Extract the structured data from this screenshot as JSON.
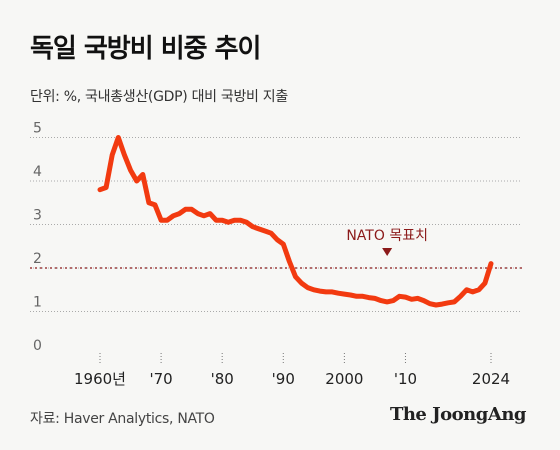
{
  "title": "독일 국방비 비중 추이",
  "subtitle": "단위: %, 국내총생산(GDP) 대비 국방비 지출",
  "source": "자료: Haver Analytics, NATO",
  "brand": "The JoongAng",
  "colors": {
    "line": "#f23a10",
    "target_line": "#8b1a1a",
    "grid": "#aaaaaa",
    "background": "#f7f7f5"
  },
  "chart_data": {
    "type": "line",
    "title": "독일 국방비 비중 추이",
    "ylabel": "단위: %, 국내총생산(GDP) 대비 국방비 지출",
    "xlim": [
      1956,
      2028
    ],
    "ylim": [
      0,
      5
    ],
    "yticks": [
      0,
      1,
      2,
      3,
      4,
      5
    ],
    "xticks": [
      {
        "value": 1960,
        "label": "1960년"
      },
      {
        "value": 1970,
        "label": "'70"
      },
      {
        "value": 1980,
        "label": "'80"
      },
      {
        "value": 1990,
        "label": "'90"
      },
      {
        "value": 2000,
        "label": "2000"
      },
      {
        "value": 2010,
        "label": "'10"
      },
      {
        "value": 2024,
        "label": "2024"
      }
    ],
    "grid": "horizontal dotted",
    "target": {
      "value": 2.0,
      "label": "NATO 목표치",
      "label_year": 2007
    },
    "series": [
      {
        "points": [
          [
            1960,
            3.8
          ],
          [
            1961,
            3.85
          ],
          [
            1962,
            4.6
          ],
          [
            1963,
            5.0
          ],
          [
            1964,
            4.6
          ],
          [
            1965,
            4.25
          ],
          [
            1966,
            4.0
          ],
          [
            1967,
            4.15
          ],
          [
            1968,
            3.5
          ],
          [
            1969,
            3.45
          ],
          [
            1970,
            3.1
          ],
          [
            1971,
            3.1
          ],
          [
            1972,
            3.2
          ],
          [
            1973,
            3.25
          ],
          [
            1974,
            3.35
          ],
          [
            1975,
            3.35
          ],
          [
            1976,
            3.25
          ],
          [
            1977,
            3.2
          ],
          [
            1978,
            3.25
          ],
          [
            1979,
            3.1
          ],
          [
            1980,
            3.1
          ],
          [
            1981,
            3.05
          ],
          [
            1982,
            3.1
          ],
          [
            1983,
            3.1
          ],
          [
            1984,
            3.05
          ],
          [
            1985,
            2.95
          ],
          [
            1986,
            2.9
          ],
          [
            1987,
            2.85
          ],
          [
            1988,
            2.8
          ],
          [
            1989,
            2.65
          ],
          [
            1990,
            2.55
          ],
          [
            1991,
            2.15
          ],
          [
            1992,
            1.8
          ],
          [
            1993,
            1.65
          ],
          [
            1994,
            1.55
          ],
          [
            1995,
            1.5
          ],
          [
            1996,
            1.47
          ],
          [
            1997,
            1.45
          ],
          [
            1998,
            1.45
          ],
          [
            1999,
            1.42
          ],
          [
            2000,
            1.4
          ],
          [
            2001,
            1.38
          ],
          [
            2002,
            1.35
          ],
          [
            2003,
            1.35
          ],
          [
            2004,
            1.32
          ],
          [
            2005,
            1.3
          ],
          [
            2006,
            1.25
          ],
          [
            2007,
            1.22
          ],
          [
            2008,
            1.25
          ],
          [
            2009,
            1.35
          ],
          [
            2010,
            1.33
          ],
          [
            2011,
            1.28
          ],
          [
            2012,
            1.3
          ],
          [
            2013,
            1.25
          ],
          [
            2014,
            1.18
          ],
          [
            2015,
            1.15
          ],
          [
            2016,
            1.17
          ],
          [
            2017,
            1.2
          ],
          [
            2018,
            1.22
          ],
          [
            2019,
            1.35
          ],
          [
            2020,
            1.5
          ],
          [
            2021,
            1.45
          ],
          [
            2022,
            1.5
          ],
          [
            2023,
            1.65
          ],
          [
            2024,
            2.1
          ]
        ]
      }
    ]
  }
}
